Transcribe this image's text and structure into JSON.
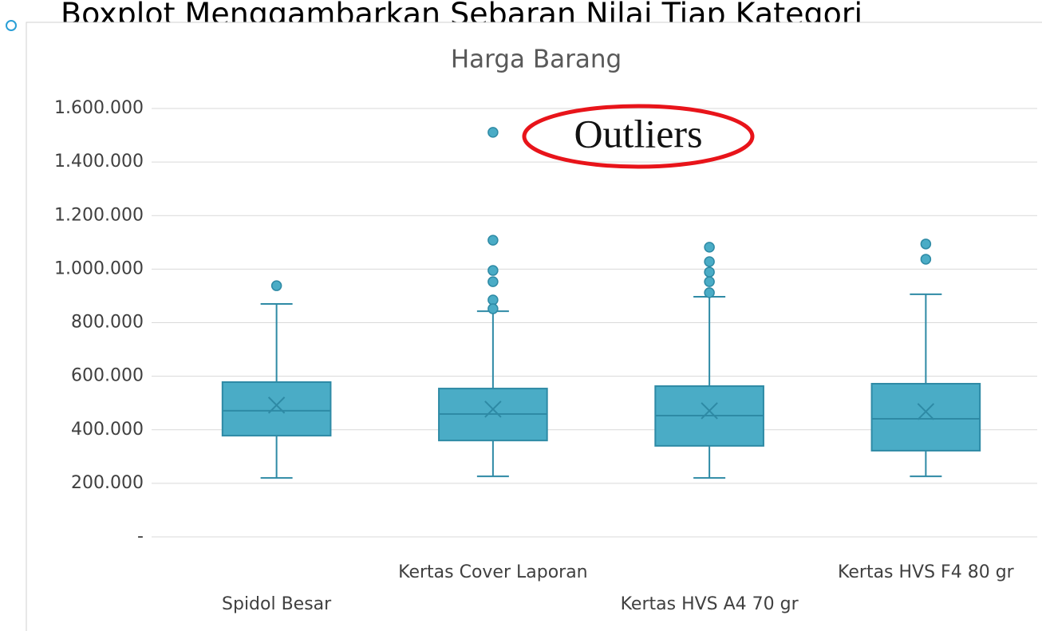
{
  "heading": "Boxplot Menggambarkan Sebaran Nilai Tiap Kategori",
  "chart_data": {
    "type": "box",
    "title": "Harga Barang",
    "annotation": "Outliers",
    "categories": [
      "Spidol Besar",
      "Kertas Cover Laporan",
      "Kertas HVS A4 70 gr",
      "Kertas HVS F4 80 gr"
    ],
    "color": "#4aacc6",
    "edge_color": "#2e8aa5",
    "boxes": [
      {
        "min": 220000,
        "q1": 378000,
        "median": 471000,
        "q3": 578000,
        "max": 870000,
        "mean": 492000,
        "outliers": [
          938000
        ]
      },
      {
        "min": 226000,
        "q1": 360000,
        "median": 459000,
        "q3": 554000,
        "max": 843000,
        "mean": 477000,
        "outliers": [
          1511000,
          1108000,
          995000,
          953000,
          885000,
          852000
        ]
      },
      {
        "min": 220000,
        "q1": 340000,
        "median": 453000,
        "q3": 563000,
        "max": 897000,
        "mean": 471000,
        "outliers": [
          1082000,
          1028000,
          989000,
          953000,
          912000
        ]
      },
      {
        "min": 226000,
        "q1": 322000,
        "median": 441000,
        "q3": 572000,
        "max": 906000,
        "mean": 468000,
        "outliers": [
          1094000,
          1037000
        ]
      }
    ],
    "ylim": [
      0,
      1600000
    ],
    "yticks": [
      {
        "value": 0,
        "label": "-"
      },
      {
        "value": 200000,
        "label": "200.000"
      },
      {
        "value": 400000,
        "label": "400.000"
      },
      {
        "value": 600000,
        "label": "600.000"
      },
      {
        "value": 800000,
        "label": "800.000"
      },
      {
        "value": 1000000,
        "label": "1.000.000"
      },
      {
        "value": 1200000,
        "label": "1.200.000"
      },
      {
        "value": 1400000,
        "label": "1.400.000"
      },
      {
        "value": 1600000,
        "label": "1.600.000"
      }
    ],
    "grid": true
  }
}
